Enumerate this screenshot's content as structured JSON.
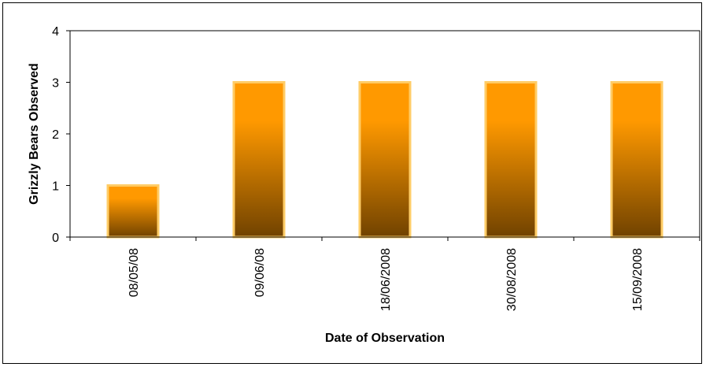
{
  "chart_data": {
    "type": "bar",
    "title": "",
    "categories": [
      "08/05/08",
      "09/06/08",
      "18/06/2008",
      "30/08/2008",
      "15/09/2008"
    ],
    "values": [
      1,
      3,
      3,
      3,
      3
    ],
    "xlabel": "Date of Observation",
    "ylabel": "Grizzly Bears Observed",
    "ylim": [
      0,
      4
    ],
    "yticks": [
      "0",
      "1",
      "2",
      "3",
      "4"
    ],
    "grid": false,
    "legend": "none",
    "colors": {
      "bar_top": "#FF9900",
      "bar_bottom": "#704200",
      "bar_border": "#FFCC66",
      "axis": "#000000"
    }
  }
}
